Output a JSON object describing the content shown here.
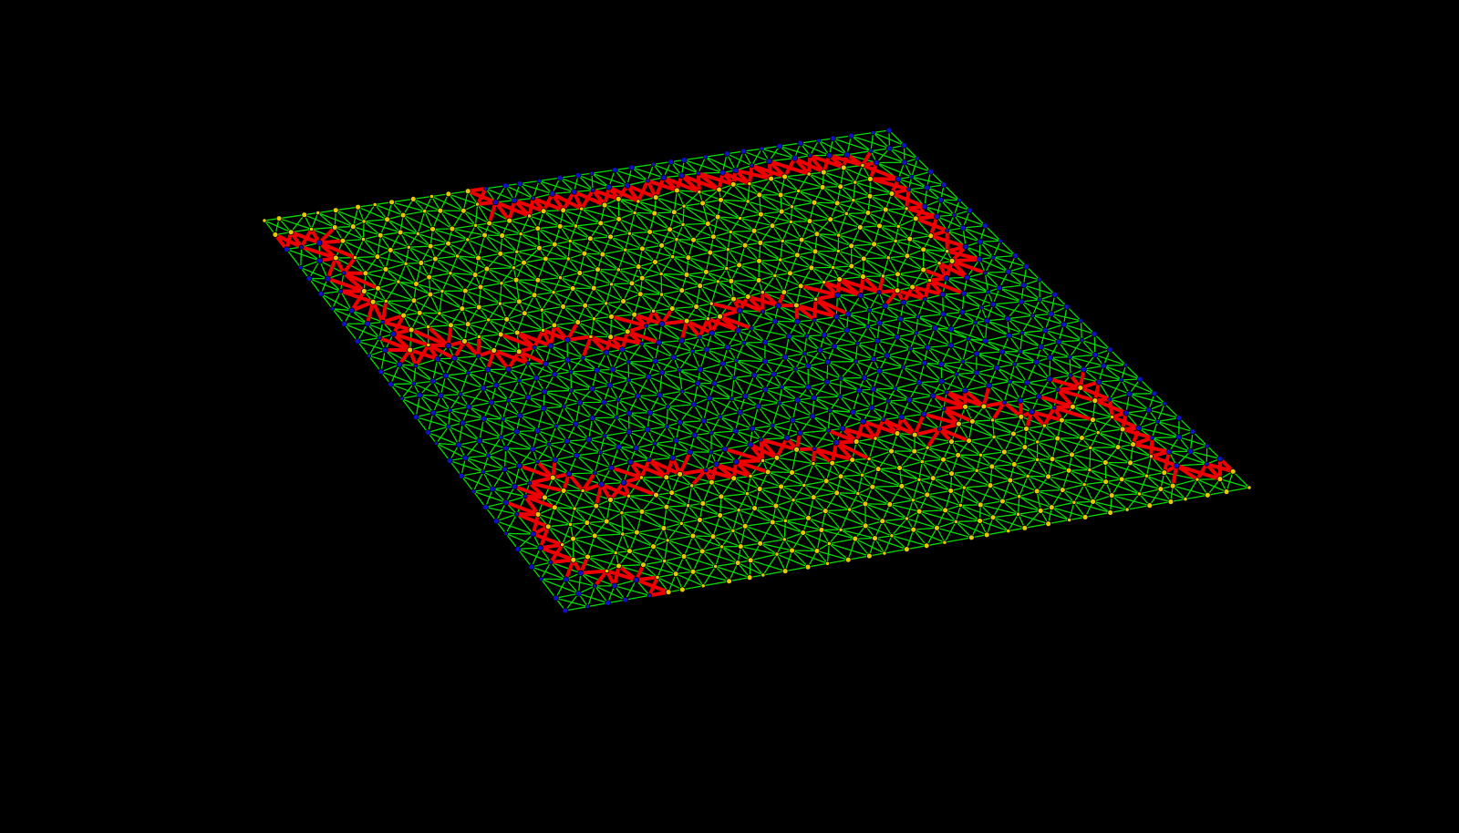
{
  "scene": {
    "background": "#000000",
    "edge_color": "#00dd00",
    "node_colors": {
      "region_a": "#e8c800",
      "region_b": "#1010c8"
    },
    "boundary_color": "#ee0000"
  }
}
